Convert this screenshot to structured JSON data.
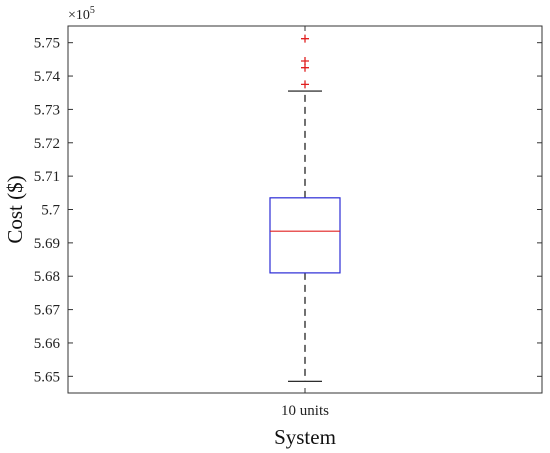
{
  "chart_data": {
    "type": "box",
    "title": "",
    "xlabel": "System",
    "ylabel": "Cost ($)",
    "y_exponent_base": "×10",
    "y_exponent_power": "5",
    "ylim": [
      5.645,
      5.755
    ],
    "y_ticks": [
      5.65,
      5.66,
      5.67,
      5.68,
      5.69,
      5.7,
      5.71,
      5.72,
      5.73,
      5.74,
      5.75
    ],
    "y_tick_labels": [
      "5.65",
      "5.66",
      "5.67",
      "5.68",
      "5.69",
      "5.7",
      "5.71",
      "5.72",
      "5.73",
      "5.74",
      "5.75"
    ],
    "categories": [
      "10 units"
    ],
    "boxes": [
      {
        "category": "10 units",
        "whisker_low": 5.6485,
        "q1": 5.681,
        "median": 5.6935,
        "q3": 5.7035,
        "whisker_high": 5.7355,
        "outliers": [
          5.7375,
          5.7425,
          5.7445,
          5.7512
        ]
      }
    ],
    "grid": false,
    "legend": "none",
    "colors": {
      "box": "#2b2bd6",
      "median": "#e02020",
      "outlier": "#e02020",
      "whisker": "#111111",
      "axes": "#333333"
    }
  }
}
